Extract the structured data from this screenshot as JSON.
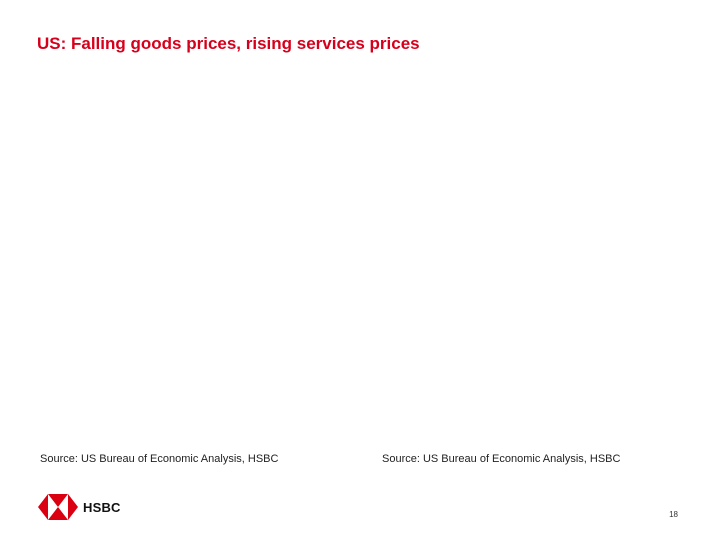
{
  "slide": {
    "title": "US: Falling goods prices, rising services prices",
    "page_number": "18"
  },
  "sources": {
    "left": "Source: US Bureau of Economic Analysis, HSBC",
    "right": "Source: US Bureau of Economic Analysis, HSBC"
  },
  "logo": {
    "text": "HSBC",
    "icon": "hsbc-hexagon-logo",
    "colors": {
      "red": "#db0011",
      "white": "#ffffff"
    }
  },
  "colors": {
    "title": "#d6001c",
    "text": "#222222"
  }
}
